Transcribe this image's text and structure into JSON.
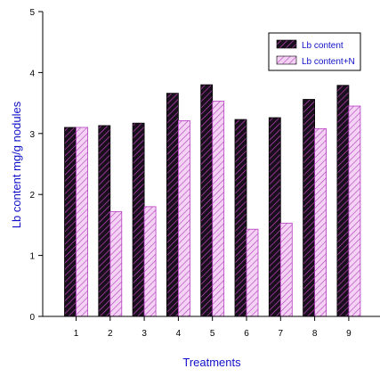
{
  "chart_data": {
    "type": "bar",
    "categories": [
      "1",
      "2",
      "3",
      "4",
      "5",
      "6",
      "7",
      "8",
      "9"
    ],
    "series": [
      {
        "name": "Lb content",
        "values": [
          3.1,
          3.13,
          3.17,
          3.66,
          3.8,
          3.23,
          3.26,
          3.56,
          3.79
        ],
        "fill": "#1a0f1c",
        "hatch": "#d54bd5"
      },
      {
        "name": "Lb content+N",
        "values": [
          3.1,
          1.72,
          1.8,
          3.21,
          3.53,
          1.43,
          1.53,
          3.08,
          3.45
        ],
        "fill": "#e9b4ea",
        "hatch": "#b43cc0"
      }
    ],
    "xlabel": "Treatments",
    "ylabel": "Lb content mg/g nodules",
    "ylim": [
      0,
      5
    ],
    "yticks": [
      "0",
      "1",
      "2",
      "3",
      "4",
      "5"
    ],
    "grid": false,
    "legend": "top-right"
  }
}
